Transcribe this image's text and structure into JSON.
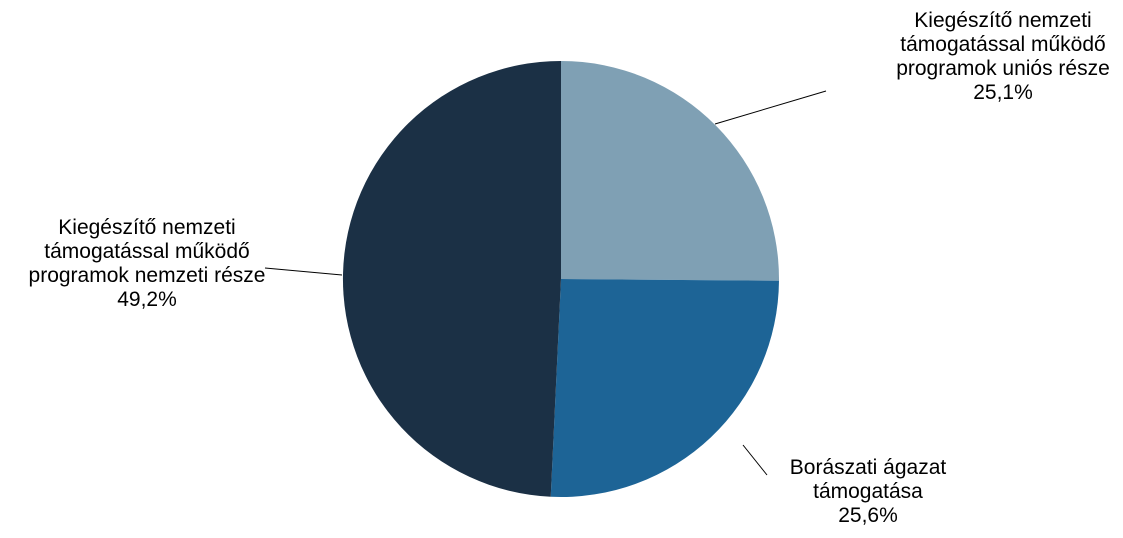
{
  "chart_data": {
    "type": "pie",
    "title": "",
    "start_angle_deg": 0,
    "direction": "clockwise",
    "slices": [
      {
        "label_lines": [
          "Kiegészítő nemzeti",
          "támogatással működő",
          "programok uniós része"
        ],
        "value_label": "25,1%",
        "value": 25.1,
        "color": "#7fa0b4"
      },
      {
        "label_lines": [
          "Borászati ágazat",
          "támogatása"
        ],
        "value_label": "25,6%",
        "value": 25.6,
        "color": "#1d6496"
      },
      {
        "label_lines": [
          "Kiegészítő nemzeti",
          "támogatással működő",
          "programok nemzeti része"
        ],
        "value_label": "49,2%",
        "value": 49.2,
        "color": "#1b3045"
      }
    ]
  }
}
